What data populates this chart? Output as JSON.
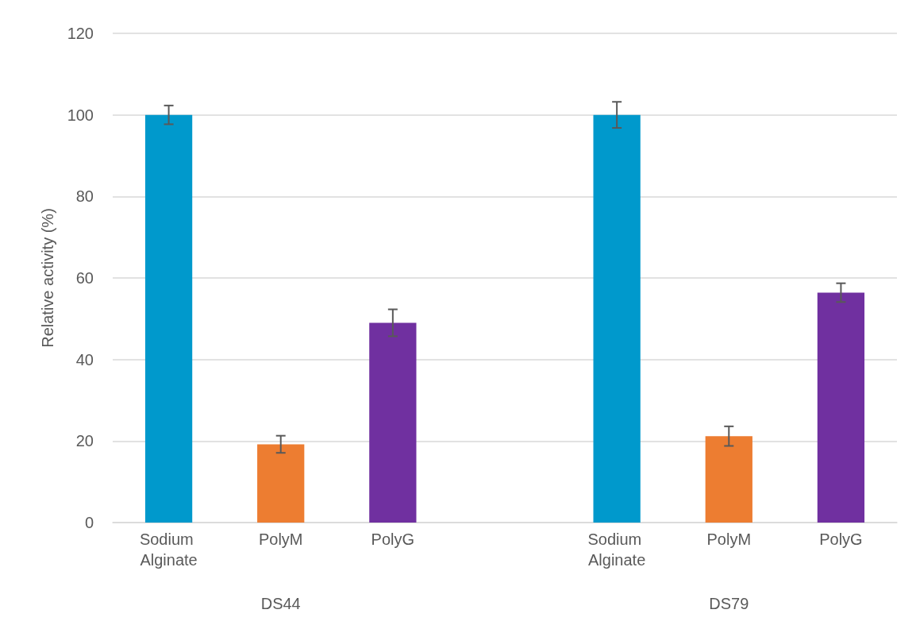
{
  "chart_data": {
    "type": "bar",
    "ylabel": "Relative activity (%)",
    "categories": [
      "Sodium Alginate",
      "PolyM",
      "PolyG",
      null,
      "Sodium Alginate",
      "PolyM",
      "PolyG"
    ],
    "values": [
      100,
      19.2,
      49.0,
      null,
      100,
      21.2,
      56.4
    ],
    "errors": [
      2.3,
      2.1,
      3.3,
      null,
      3.2,
      2.4,
      2.3
    ],
    "colors": [
      "#0099cc",
      "#ed7d31",
      "#7030a0",
      null,
      "#0099cc",
      "#ed7d31",
      "#7030a0"
    ],
    "annotations": [
      "DS44",
      "DS79"
    ],
    "ylim": [
      0,
      120
    ],
    "yticks": [
      0,
      20,
      40,
      60,
      80,
      100,
      120
    ],
    "grid": "y"
  }
}
